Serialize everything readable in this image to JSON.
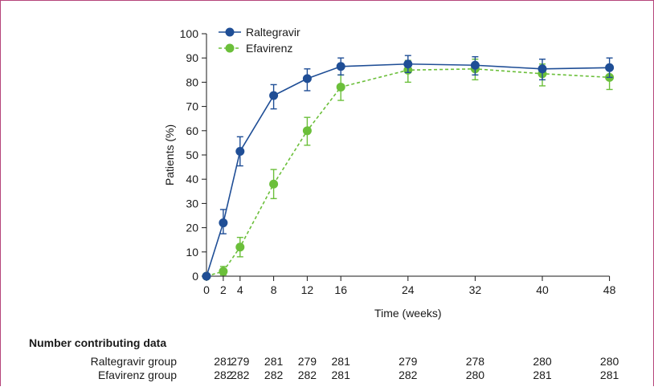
{
  "chart_data": {
    "type": "line",
    "xlabel": "Time (weeks)",
    "ylabel": "Patients (%)",
    "xlim": [
      0,
      48
    ],
    "ylim": [
      0,
      100
    ],
    "x_ticks": [
      0,
      2,
      4,
      8,
      12,
      16,
      24,
      32,
      40,
      48
    ],
    "y_ticks": [
      0,
      10,
      20,
      30,
      40,
      50,
      60,
      70,
      80,
      90,
      100
    ],
    "legend_position": "top-left",
    "series": [
      {
        "name": "Raltegravir",
        "color": "#1f4e96",
        "style": "solid",
        "x": [
          0,
          2,
          4,
          8,
          12,
          16,
          24,
          32,
          40,
          48
        ],
        "y": [
          0,
          22,
          51.5,
          74.5,
          81.5,
          86.5,
          87.5,
          87,
          85.5,
          86
        ],
        "err_low": [
          0,
          17.5,
          45.5,
          69,
          76.5,
          83,
          84,
          83,
          81,
          82
        ],
        "err_high": [
          0,
          27.5,
          57.5,
          79,
          85.5,
          90,
          91,
          90.5,
          89.5,
          90
        ]
      },
      {
        "name": "Efavirenz",
        "color": "#6bbf3a",
        "style": "dashed",
        "x": [
          0,
          2,
          4,
          8,
          12,
          16,
          24,
          32,
          40,
          48
        ],
        "y": [
          0,
          2,
          12,
          38,
          60,
          78,
          85,
          85.5,
          83.5,
          82
        ],
        "err_low": [
          0,
          0.5,
          8,
          32,
          54,
          72.5,
          80,
          81,
          78.5,
          77
        ],
        "err_high": [
          0,
          4,
          16,
          44,
          65.5,
          83,
          89,
          89.5,
          87.5,
          86.5
        ]
      }
    ]
  },
  "table": {
    "title": "Number contributing data",
    "rows": [
      {
        "label": "Raltegravir group",
        "values": [
          "281",
          "279",
          "281",
          "279",
          "281",
          "279",
          "278",
          "280",
          "280"
        ]
      },
      {
        "label": "Efavirenz group",
        "values": [
          "282",
          "282",
          "282",
          "282",
          "281",
          "282",
          "280",
          "281",
          "281"
        ]
      }
    ]
  }
}
